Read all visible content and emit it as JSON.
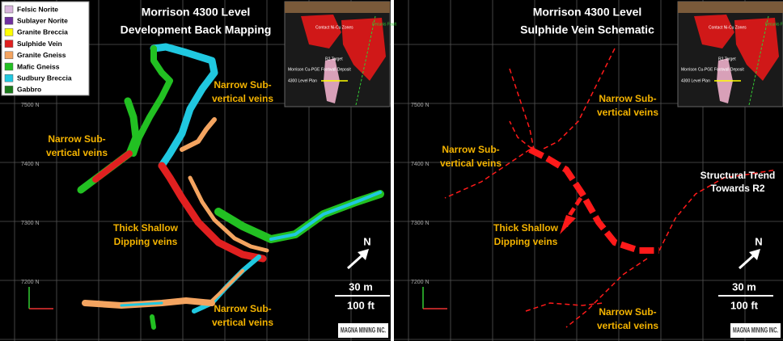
{
  "left_panel": {
    "title": [
      "Morrison 4300 Level",
      "Development Back Mapping"
    ],
    "legend": [
      {
        "label": "Felsic Norite",
        "color": "#d8b4dc"
      },
      {
        "label": "Sublayer Norite",
        "color": "#7030a0"
      },
      {
        "label": "Granite Breccia",
        "color": "#ffff00"
      },
      {
        "label": "Sulphide Vein",
        "color": "#e02020"
      },
      {
        "label": "Granite Gneiss",
        "color": "#f4a460"
      },
      {
        "label": "Mafic Gneiss",
        "color": "#22c022"
      },
      {
        "label": "Sudbury Breccia",
        "color": "#20c8e0"
      },
      {
        "label": "Gabbro",
        "color": "#1a7a1a"
      }
    ],
    "annotations": [
      [
        "Narrow Sub-",
        "vertical veins"
      ],
      [
        "Narrow Sub-",
        "vertical veins"
      ],
      [
        "Thick Shallow",
        "Dipping veins"
      ],
      [
        "Narrow Sub-",
        "vertical veins"
      ]
    ],
    "northings": [
      "7500 N",
      "7400 N",
      "7300 N",
      "7200 N"
    ],
    "inset": {
      "zones": "Contact Ni-Cu Zones",
      "fault": "Fecunis Fault",
      "target": "R2 Target",
      "deposit": "Morrison Cu-PGE Footwall Deposit",
      "plan": "4300 Level Plan"
    },
    "north": "N",
    "scale": {
      "metric": "30 m",
      "imperial": "100 ft"
    },
    "logo": "MAGNA MINING INC."
  },
  "right_panel": {
    "title": [
      "Morrison 4300 Level",
      "Sulphide Vein Schematic"
    ],
    "annotations": [
      [
        "Narrow Sub-",
        "vertical veins"
      ],
      [
        "Narrow Sub-",
        "vertical veins"
      ],
      [
        "Thick Shallow",
        "Dipping veins"
      ],
      [
        "Structural Trend",
        "Towards R2"
      ],
      [
        "Narrow Sub-",
        "vertical veins"
      ]
    ],
    "northings": [
      "7500 N",
      "7400 N",
      "7300 N",
      "7200 N"
    ],
    "inset": {
      "zones": "Contact Ni-Cu Zones",
      "fault": "Fecunis Fault",
      "target": "R2 Target",
      "deposit": "Morrison Cu-PGE Footwall Deposit",
      "plan": "4300 Level Plan"
    },
    "north": "N",
    "scale": {
      "metric": "30 m",
      "imperial": "100 ft"
    },
    "logo": "MAGNA MINING INC."
  }
}
